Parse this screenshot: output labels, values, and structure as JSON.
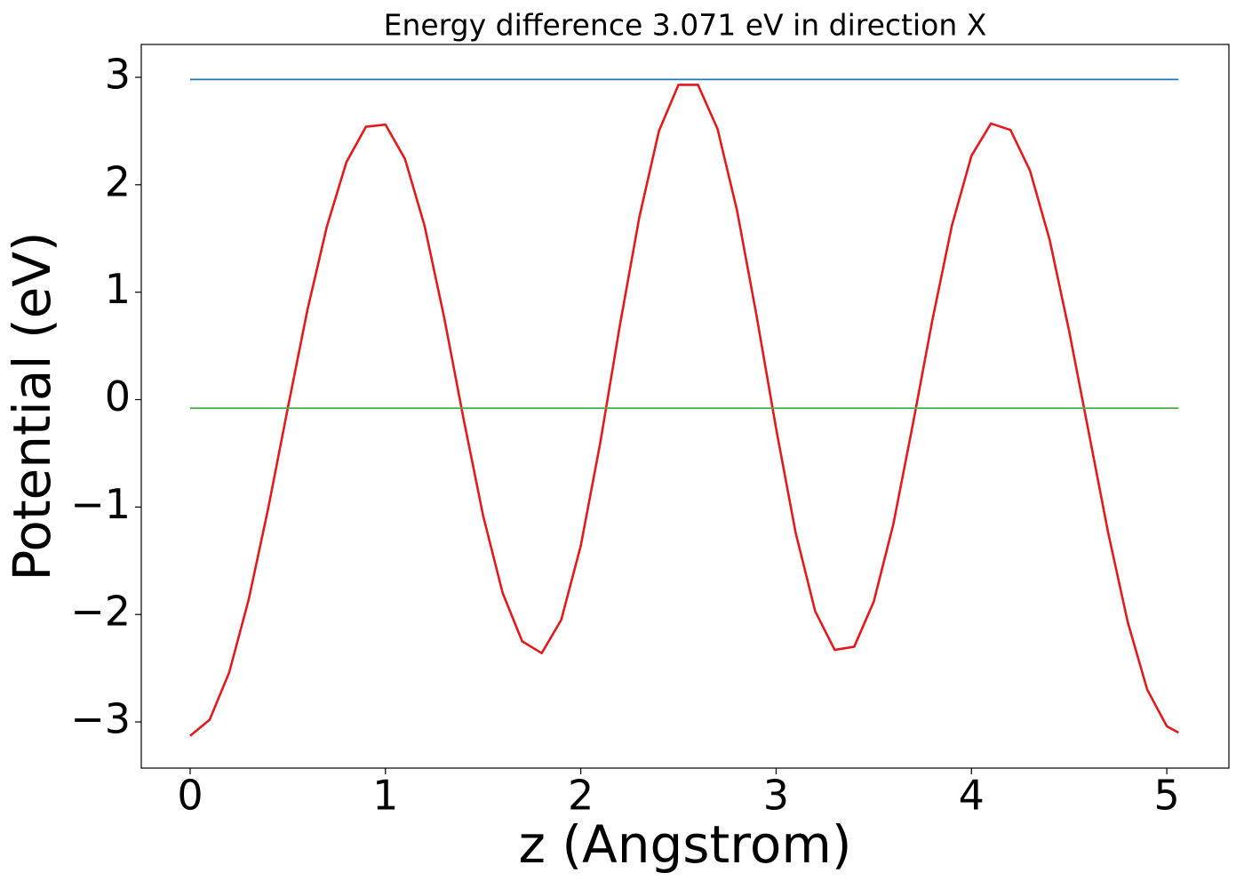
{
  "chart_data": {
    "type": "line",
    "title": "Energy difference 3.071 eV in direction X",
    "xlabel": "z (Angstrom)",
    "ylabel": "Potential (eV)",
    "series": [
      {
        "color": "#e31a1c",
        "x": [
          0,
          0.1,
          0.2,
          0.3,
          0.4,
          0.5,
          0.6,
          0.7,
          0.8,
          0.9,
          1.0,
          1.1,
          1.2,
          1.3,
          1.4,
          1.5,
          1.6,
          1.7,
          1.8,
          1.9,
          2.0,
          2.1,
          2.2,
          2.3,
          2.4,
          2.5,
          2.6,
          2.7,
          2.8,
          2.9,
          3.0,
          3.1,
          3.2,
          3.3,
          3.4,
          3.5,
          3.6,
          3.7,
          3.8,
          3.9,
          4.0,
          4.1,
          4.2,
          4.3,
          4.4,
          4.5,
          4.6,
          4.7,
          4.8,
          4.9,
          5.0,
          5.06
        ],
        "values": [
          -3.13,
          -2.98,
          -2.54,
          -1.86,
          -1.01,
          -0.08,
          0.83,
          1.61,
          2.21,
          2.54,
          2.56,
          2.24,
          1.62,
          0.77,
          -0.18,
          -1.08,
          -1.8,
          -2.25,
          -2.36,
          -2.05,
          -1.36,
          -0.4,
          0.69,
          1.7,
          2.5,
          2.93,
          2.93,
          2.52,
          1.76,
          0.78,
          -0.27,
          -1.24,
          -1.97,
          -2.33,
          -2.3,
          -1.88,
          -1.16,
          -0.23,
          0.74,
          1.62,
          2.27,
          2.57,
          2.51,
          2.13,
          1.49,
          0.64,
          -0.3,
          -1.24,
          -2.07,
          -2.7,
          -3.04,
          -3.1
        ]
      },
      {
        "color": "#1f77b4",
        "x": [
          0,
          5.06
        ],
        "values": [
          2.98,
          2.98
        ]
      },
      {
        "color": "#4daf4a",
        "x": [
          0,
          5.06
        ],
        "values": [
          -0.08,
          -0.08
        ]
      }
    ],
    "xlim": [
      -0.25,
      5.318
    ],
    "ylim": [
      -3.43,
      3.306
    ],
    "xticks": [
      0,
      1,
      2,
      3,
      4,
      5
    ],
    "yticks": [
      {
        "value": -3,
        "label": "−3"
      },
      {
        "value": -2,
        "label": "−2"
      },
      {
        "value": -1,
        "label": "−1"
      },
      0,
      1,
      2,
      3
    ],
    "grid": false
  }
}
